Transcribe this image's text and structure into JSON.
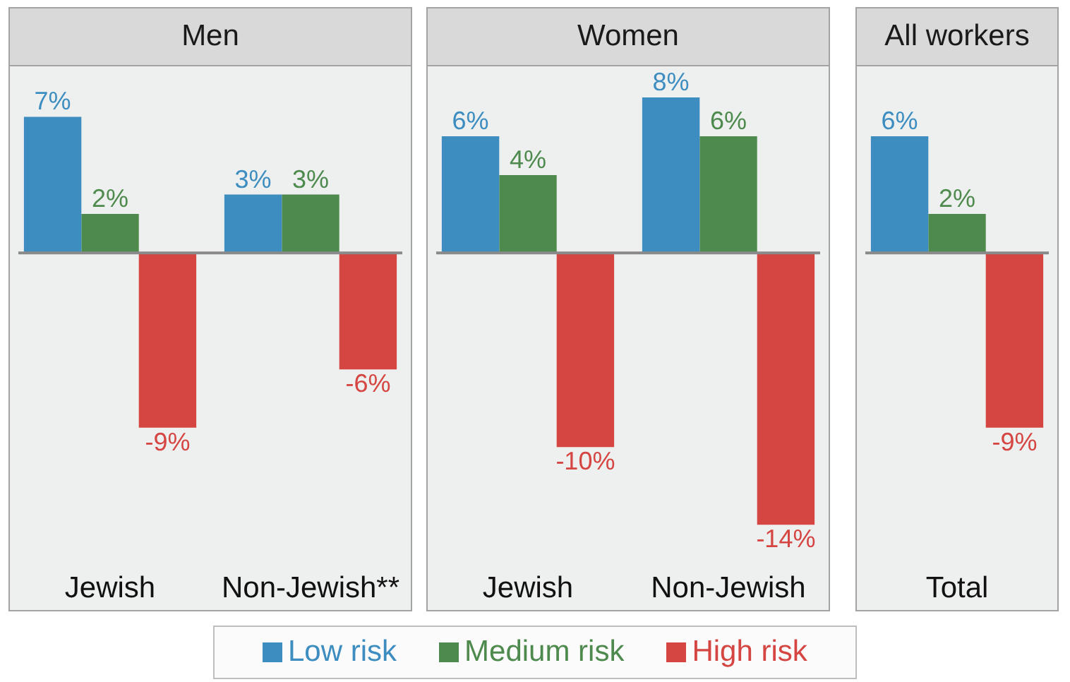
{
  "chart_data": [
    {
      "type": "bar",
      "title": "Men",
      "categories": [
        "Jewish",
        "Non-Jewish**"
      ],
      "series": [
        {
          "name": "Low risk",
          "color": "#3d8dc0",
          "values": [
            7,
            3
          ],
          "value_labels": [
            "7%",
            "3%"
          ]
        },
        {
          "name": "Medium risk",
          "color": "#4e8a4e",
          "values": [
            2,
            3
          ],
          "value_labels": [
            "2%",
            "3%"
          ]
        },
        {
          "name": "High risk",
          "color": "#d54541",
          "values": [
            -9,
            -6
          ],
          "value_labels": [
            "-9%",
            "-6%"
          ]
        }
      ],
      "legend": "bottom"
    },
    {
      "type": "bar",
      "title": "Women",
      "categories": [
        "Jewish",
        "Non-Jewish"
      ],
      "series": [
        {
          "color": "#3d8dc0",
          "values": [
            6,
            8
          ],
          "value_labels": [
            "6%",
            "8%"
          ]
        },
        {
          "color": "#4e8a4e",
          "values": [
            4,
            6
          ],
          "value_labels": [
            "4%",
            "6%"
          ]
        },
        {
          "color": "#d54541",
          "values": [
            -10,
            -14
          ],
          "value_labels": [
            "-10%",
            "-14%"
          ]
        }
      ]
    },
    {
      "type": "bar",
      "title": "All workers",
      "categories": [
        "Total"
      ],
      "series": [
        {
          "color": "#3d8dc0",
          "values": [
            6
          ],
          "value_labels": [
            "6%"
          ]
        },
        {
          "color": "#4e8a4e",
          "values": [
            2
          ],
          "value_labels": [
            "2%"
          ]
        },
        {
          "color": "#d54541",
          "values": [
            -9
          ],
          "value_labels": [
            "-9%"
          ]
        }
      ]
    }
  ]
}
